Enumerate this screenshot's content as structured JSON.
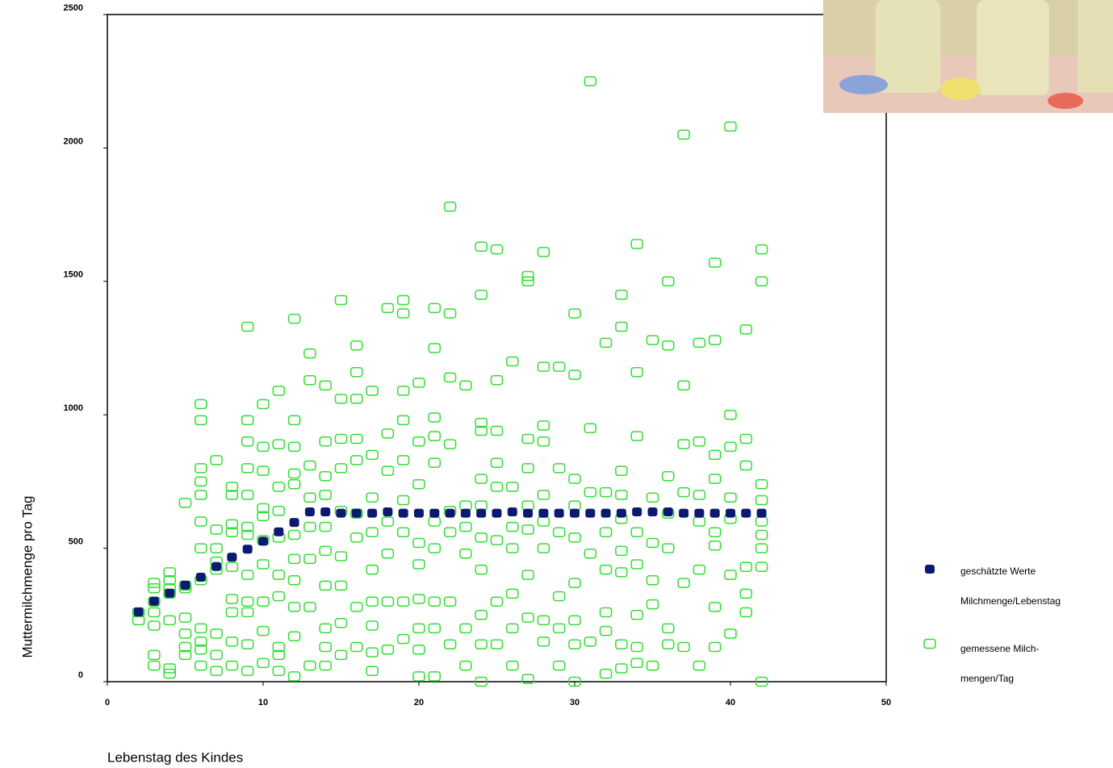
{
  "chart_data": {
    "type": "scatter",
    "x_label": "Lebenstag des Kindes",
    "y_label": "Muttermilchmenge pro Tag",
    "xlim": [
      0,
      50
    ],
    "xticks": [
      0,
      10,
      20,
      30,
      40,
      50
    ],
    "ylim": [
      0,
      2500
    ],
    "yticks": [
      0,
      500,
      1000,
      1500,
      2000,
      2500
    ],
    "series": [
      {
        "name": "geschätzte Werte Milchmenge/Lebenstag",
        "color": "#0b1a70",
        "marker": "filled",
        "x": [
          2,
          3,
          4,
          5,
          6,
          7,
          8,
          9,
          10,
          11,
          12,
          13,
          14,
          15,
          16,
          17,
          18,
          19,
          20,
          21,
          22,
          23,
          24,
          25,
          26,
          27,
          28,
          29,
          30,
          31,
          32,
          33,
          34,
          35,
          36,
          37,
          38,
          39,
          40,
          41,
          42
        ],
        "values": [
          260,
          300,
          330,
          360,
          390,
          430,
          465,
          495,
          525,
          560,
          595,
          635,
          635,
          630,
          630,
          630,
          635,
          630,
          630,
          630,
          630,
          630,
          630,
          630,
          635,
          630,
          630,
          630,
          630,
          630,
          630,
          630,
          635,
          635,
          635,
          630,
          630,
          630,
          630,
          630,
          630
        ]
      },
      {
        "name": "gemessene Milch- mengen/Tag",
        "color": "#33dd33",
        "marker": "open",
        "x": [
          2,
          2,
          3,
          3,
          3,
          3,
          3,
          3,
          3,
          4,
          4,
          4,
          4,
          4,
          4,
          4,
          5,
          5,
          5,
          5,
          5,
          5,
          5,
          6,
          6,
          6,
          6,
          6,
          6,
          6,
          6,
          6,
          6,
          6,
          6,
          7,
          7,
          7,
          7,
          7,
          7,
          7,
          7,
          8,
          8,
          8,
          8,
          8,
          8,
          8,
          8,
          8,
          9,
          9,
          9,
          9,
          9,
          9,
          9,
          9,
          9,
          9,
          9,
          9,
          10,
          10,
          10,
          10,
          10,
          10,
          10,
          10,
          10,
          10,
          11,
          11,
          11,
          11,
          11,
          11,
          11,
          11,
          11,
          11,
          12,
          12,
          12,
          12,
          12,
          12,
          12,
          12,
          12,
          12,
          12,
          13,
          13,
          13,
          13,
          13,
          13,
          13,
          13,
          14,
          14,
          14,
          14,
          14,
          14,
          14,
          14,
          14,
          14,
          15,
          15,
          15,
          15,
          15,
          15,
          15,
          15,
          15,
          16,
          16,
          16,
          16,
          16,
          16,
          16,
          16,
          16,
          17,
          17,
          17,
          17,
          17,
          17,
          17,
          17,
          17,
          18,
          18,
          18,
          18,
          18,
          18,
          18,
          19,
          19,
          19,
          19,
          19,
          19,
          19,
          19,
          19,
          20,
          20,
          20,
          20,
          20,
          20,
          20,
          20,
          20,
          21,
          21,
          21,
          21,
          21,
          21,
          21,
          21,
          21,
          21,
          22,
          22,
          22,
          22,
          22,
          22,
          22,
          22,
          23,
          23,
          23,
          23,
          23,
          23,
          24,
          24,
          24,
          24,
          24,
          24,
          24,
          24,
          24,
          24,
          24,
          25,
          25,
          25,
          25,
          25,
          25,
          25,
          25,
          26,
          26,
          26,
          26,
          26,
          26,
          26,
          27,
          27,
          27,
          27,
          27,
          27,
          27,
          27,
          27,
          28,
          28,
          28,
          28,
          28,
          28,
          28,
          28,
          28,
          29,
          29,
          29,
          29,
          29,
          29,
          30,
          30,
          30,
          30,
          30,
          30,
          30,
          30,
          30,
          31,
          31,
          31,
          31,
          31,
          32,
          32,
          32,
          32,
          32,
          32,
          32,
          33,
          33,
          33,
          33,
          33,
          33,
          33,
          33,
          33,
          34,
          34,
          34,
          34,
          34,
          34,
          34,
          34,
          35,
          35,
          35,
          35,
          35,
          35,
          36,
          36,
          36,
          36,
          36,
          36,
          36,
          37,
          37,
          37,
          37,
          37,
          37,
          38,
          38,
          38,
          38,
          38,
          38,
          39,
          39,
          39,
          39,
          39,
          39,
          39,
          39,
          40,
          40,
          40,
          40,
          40,
          40,
          40,
          41,
          41,
          41,
          41,
          41,
          41,
          42,
          42,
          42,
          42,
          42,
          42,
          42,
          42,
          42
        ],
        "values": [
          230,
          260,
          60,
          100,
          210,
          260,
          300,
          350,
          370,
          30,
          50,
          230,
          330,
          350,
          380,
          410,
          100,
          130,
          180,
          240,
          350,
          360,
          670,
          60,
          120,
          150,
          200,
          380,
          500,
          600,
          700,
          750,
          800,
          980,
          1040,
          40,
          100,
          180,
          420,
          450,
          500,
          570,
          830,
          60,
          150,
          260,
          310,
          430,
          560,
          590,
          700,
          730,
          40,
          140,
          260,
          300,
          400,
          550,
          580,
          700,
          800,
          900,
          980,
          1330,
          70,
          190,
          300,
          440,
          530,
          620,
          650,
          790,
          880,
          1040,
          40,
          100,
          130,
          320,
          400,
          540,
          640,
          730,
          890,
          1090,
          20,
          170,
          280,
          380,
          460,
          550,
          740,
          780,
          880,
          980,
          1360,
          60,
          280,
          460,
          580,
          690,
          810,
          1130,
          1230,
          60,
          130,
          200,
          360,
          490,
          580,
          700,
          770,
          900,
          1110,
          100,
          220,
          360,
          470,
          640,
          800,
          910,
          1060,
          1430,
          130,
          280,
          540,
          630,
          830,
          910,
          1060,
          1160,
          1260,
          40,
          110,
          210,
          300,
          420,
          560,
          690,
          850,
          1090,
          120,
          300,
          480,
          600,
          790,
          930,
          1400,
          160,
          300,
          560,
          680,
          830,
          980,
          1090,
          1380,
          1430,
          20,
          120,
          200,
          310,
          440,
          520,
          740,
          900,
          1120,
          20,
          200,
          300,
          500,
          600,
          820,
          920,
          990,
          1250,
          1400,
          140,
          300,
          560,
          640,
          890,
          1140,
          1380,
          1780,
          60,
          200,
          480,
          580,
          660,
          1110,
          0,
          140,
          250,
          420,
          540,
          660,
          760,
          940,
          970,
          1450,
          1630,
          140,
          300,
          530,
          730,
          820,
          940,
          1130,
          1620,
          60,
          200,
          330,
          500,
          580,
          730,
          1200,
          10,
          240,
          400,
          570,
          660,
          800,
          910,
          1500,
          1520,
          150,
          230,
          500,
          600,
          700,
          900,
          960,
          1180,
          1610,
          60,
          200,
          320,
          560,
          800,
          1180,
          0,
          140,
          230,
          370,
          540,
          660,
          760,
          1150,
          1380,
          150,
          480,
          710,
          950,
          2250,
          30,
          190,
          260,
          420,
          560,
          710,
          1270,
          50,
          140,
          410,
          490,
          610,
          700,
          790,
          1330,
          1450,
          70,
          130,
          250,
          440,
          560,
          920,
          1160,
          1640,
          60,
          290,
          380,
          520,
          690,
          1280,
          140,
          200,
          500,
          630,
          770,
          1260,
          1500,
          130,
          370,
          710,
          890,
          1110,
          2050,
          60,
          420,
          600,
          700,
          900,
          1270,
          130,
          280,
          510,
          560,
          760,
          850,
          1280,
          1570,
          180,
          400,
          610,
          690,
          880,
          1000,
          2080,
          260,
          330,
          430,
          810,
          910,
          1320,
          0,
          430,
          500,
          550,
          600,
          680,
          740,
          1500,
          1620
        ]
      }
    ]
  }
}
